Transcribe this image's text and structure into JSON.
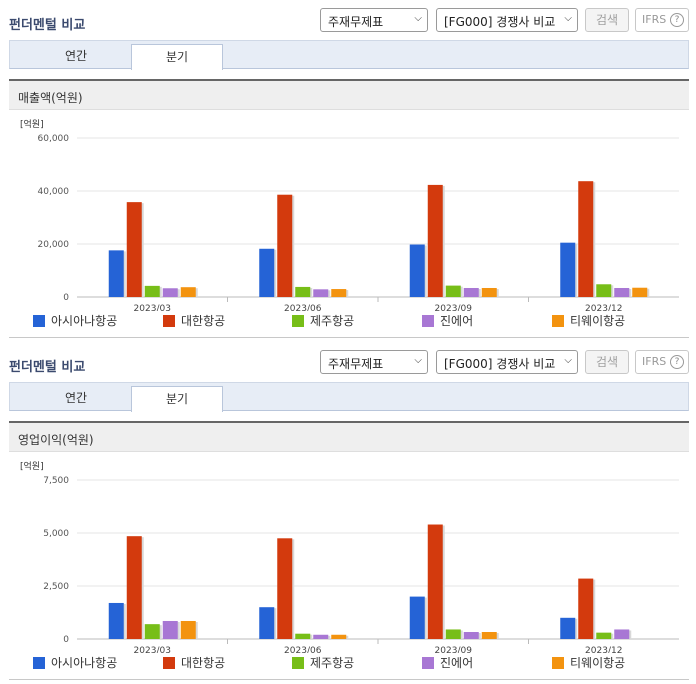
{
  "panels": [
    {
      "title": "펀더멘털 비교",
      "select_statement": "주재무제표",
      "select_compare": "[FG000] 경쟁사 비교",
      "search_label": "검색",
      "ifrs_label": "IFRS",
      "help_glyph": "?",
      "tab_annual": "연간",
      "tab_quarter": "분기",
      "chart_title": "매출액(억원)",
      "unit_label": "[억원]"
    },
    {
      "title": "펀더멘털 비교",
      "select_statement": "주재무제표",
      "select_compare": "[FG000] 경쟁사 비교",
      "search_label": "검색",
      "ifrs_label": "IFRS",
      "help_glyph": "?",
      "tab_annual": "연간",
      "tab_quarter": "분기",
      "chart_title": "영업이익(억원)",
      "unit_label": "[억원]"
    }
  ],
  "legend": [
    "아시아나항공",
    "대한항공",
    "제주항공",
    "진에어",
    "티웨이항공"
  ],
  "colors": [
    "#2563d6",
    "#d33a0d",
    "#77be18",
    "#a877d4",
    "#f3930f"
  ],
  "chart_data": [
    {
      "type": "bar",
      "title": "매출액(억원)",
      "ylabel": "[억원]",
      "categories": [
        "2023/03",
        "2023/06",
        "2023/09",
        "2023/12"
      ],
      "ylim": [
        0,
        60000
      ],
      "yticks": [
        "0",
        "20,000",
        "40,000",
        "60,000"
      ],
      "ytick_values": [
        0,
        20000,
        40000,
        60000
      ],
      "series": [
        {
          "name": "아시아나항공",
          "values": [
            17600,
            18200,
            19800,
            20500
          ]
        },
        {
          "name": "대한항공",
          "values": [
            35800,
            38600,
            42300,
            43700
          ]
        },
        {
          "name": "제주항공",
          "values": [
            4200,
            3800,
            4300,
            4800
          ]
        },
        {
          "name": "진에어",
          "values": [
            3300,
            2900,
            3400,
            3400
          ]
        },
        {
          "name": "티웨이항공",
          "values": [
            3700,
            3000,
            3400,
            3500
          ]
        }
      ]
    },
    {
      "type": "bar",
      "title": "영업이익(억원)",
      "ylabel": "[억원]",
      "categories": [
        "2023/03",
        "2023/06",
        "2023/09",
        "2023/12"
      ],
      "ylim": [
        0,
        7500
      ],
      "yticks": [
        "0",
        "2,500",
        "5,000",
        "7,500"
      ],
      "ytick_values": [
        0,
        2500,
        5000,
        7500
      ],
      "series": [
        {
          "name": "아시아나항공",
          "values": [
            1700,
            1500,
            2000,
            1000
          ]
        },
        {
          "name": "대한항공",
          "values": [
            4850,
            4750,
            5400,
            2850
          ]
        },
        {
          "name": "제주항공",
          "values": [
            700,
            250,
            450,
            300
          ]
        },
        {
          "name": "진에어",
          "values": [
            850,
            200,
            330,
            450
          ]
        },
        {
          "name": "티웨이항공",
          "values": [
            850,
            200,
            330,
            0
          ]
        }
      ]
    }
  ]
}
